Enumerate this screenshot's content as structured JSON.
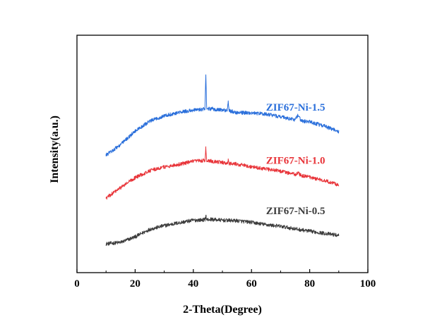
{
  "chart_data": {
    "type": "line",
    "title": "",
    "xlabel": "2-Theta(Degree)",
    "ylabel": "Intensity(a.u.)",
    "xlim": [
      0,
      100
    ],
    "xticks": [
      0,
      20,
      40,
      60,
      80,
      100
    ],
    "xtick_labels": [
      "0",
      "20",
      "40",
      "60",
      "80",
      "100"
    ],
    "yaxis_ticks_shown": false,
    "grid": false,
    "legend": "none (inline labels at right)",
    "series": [
      {
        "name": "ZIF67-Ni-0.5",
        "color": "#3d3d3d",
        "x": [
          10,
          15,
          20,
          25,
          30,
          35,
          40,
          44,
          44.3,
          44.6,
          46,
          50,
          55,
          60,
          65,
          70,
          75,
          80,
          85,
          90
        ],
        "y": [
          0.4,
          1.0,
          3.4,
          6.6,
          8.2,
          9.4,
          10.5,
          10.7,
          12.6,
          10.7,
          10.9,
          10.5,
          10.3,
          9.6,
          8.6,
          7.9,
          6.8,
          5.8,
          4.9,
          4.0
        ]
      },
      {
        "name": "ZIF67-Ni-1.0",
        "color": "#e8353a",
        "x": [
          10,
          15,
          20,
          25,
          30,
          35,
          40,
          44,
          44.3,
          44.6,
          46,
          51.7,
          52,
          52.3,
          55,
          60,
          65,
          70,
          75,
          76,
          77,
          80,
          85,
          90
        ],
        "y": [
          20.0,
          24.5,
          28.8,
          31.8,
          33.4,
          34.5,
          35.8,
          36.2,
          41.5,
          36.2,
          36.0,
          35.0,
          36.2,
          35.0,
          34.6,
          33.5,
          32.5,
          31.6,
          30.2,
          30.8,
          29.8,
          29.0,
          27.6,
          25.7
        ]
      },
      {
        "name": "ZIF67-Ni-1.5",
        "color": "#2a6fdb",
        "x": [
          10,
          15,
          20,
          25,
          30,
          35,
          40,
          44,
          44.3,
          44.6,
          46,
          51.7,
          52,
          52.3,
          55,
          60,
          65,
          70,
          75,
          76,
          77,
          80,
          85,
          90
        ],
        "y": [
          38.5,
          43.0,
          48.8,
          53.0,
          55.4,
          56.8,
          57.8,
          58.3,
          73.0,
          58.3,
          58.4,
          57.6,
          61.8,
          57.6,
          56.8,
          56.6,
          56.1,
          55.0,
          53.6,
          55.6,
          53.2,
          52.8,
          51.0,
          48.6
        ]
      }
    ]
  }
}
